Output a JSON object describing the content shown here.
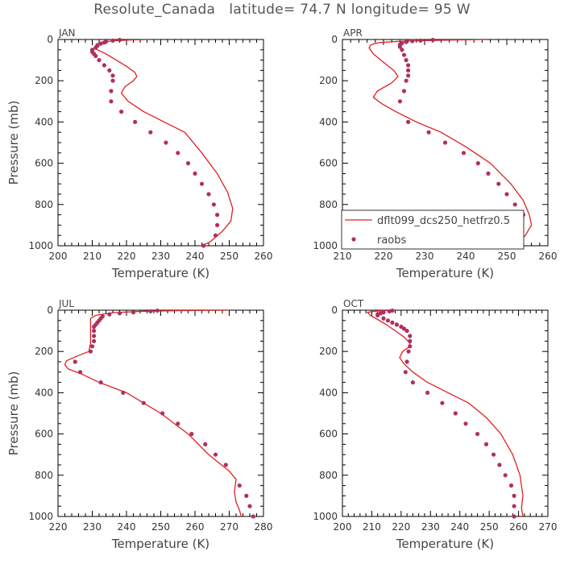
{
  "title": "Resolute_Canada   latitude= 74.7 N longitude= 95 W",
  "colors": {
    "model": "#e02020",
    "obs": "#b03060",
    "axis": "#000000",
    "text": "#444444"
  },
  "chart_data": [
    {
      "type": "line",
      "panel": "JAN",
      "xlabel": "Temperature (K)",
      "ylabel": "Pressure (mb)",
      "xlim": [
        200,
        260
      ],
      "ylim": [
        0,
        1000
      ],
      "y_inverted": true,
      "xticks": [
        200,
        210,
        220,
        230,
        240,
        250,
        260
      ],
      "yticks": [
        0,
        200,
        400,
        600,
        800,
        1000
      ],
      "series": [
        {
          "name": "dflt099_dcs250_hetfrz0.5",
          "kind": "line",
          "points": [
            [
              226.5,
              0
            ],
            [
              222,
              2
            ],
            [
              217,
              5
            ],
            [
              213,
              12
            ],
            [
              211.2,
              22
            ],
            [
              210.8,
              35
            ],
            [
              211.5,
              50
            ],
            [
              214,
              70
            ],
            [
              217,
              100
            ],
            [
              220,
              130
            ],
            [
              222.5,
              160
            ],
            [
              223,
              180
            ],
            [
              222,
              200
            ],
            [
              219.5,
              230
            ],
            [
              218.5,
              260
            ],
            [
              220.5,
              300
            ],
            [
              225,
              350
            ],
            [
              231,
              400
            ],
            [
              237,
              450
            ],
            [
              242,
              550
            ],
            [
              246.5,
              650
            ],
            [
              249.5,
              740
            ],
            [
              251,
              820
            ],
            [
              250.5,
              880
            ],
            [
              248,
              930
            ],
            [
              244.5,
              980
            ],
            [
              242,
              1000
            ]
          ]
        },
        {
          "name": "raobs",
          "kind": "scatter",
          "points": [
            [
              218,
              2
            ],
            [
              216,
              5
            ],
            [
              214,
              10
            ],
            [
              213.5,
              15
            ],
            [
              212.5,
              20
            ],
            [
              211.5,
              30
            ],
            [
              211,
              40
            ],
            [
              210,
              50
            ],
            [
              210,
              60
            ],
            [
              210.5,
              70
            ],
            [
              211,
              80
            ],
            [
              212,
              100
            ],
            [
              213.5,
              125
            ],
            [
              215,
              150
            ],
            [
              216,
              175
            ],
            [
              216,
              200
            ],
            [
              215.5,
              250
            ],
            [
              215.5,
              300
            ],
            [
              218.5,
              350
            ],
            [
              222.5,
              400
            ],
            [
              227,
              450
            ],
            [
              231.5,
              500
            ],
            [
              235,
              550
            ],
            [
              238,
              600
            ],
            [
              240,
              650
            ],
            [
              242,
              700
            ],
            [
              244,
              750
            ],
            [
              245.5,
              800
            ],
            [
              246.5,
              850
            ],
            [
              246.5,
              900
            ],
            [
              246,
              950
            ],
            [
              242.5,
              1000
            ]
          ]
        }
      ]
    },
    {
      "type": "line",
      "panel": "APR",
      "xlabel": "Temperature (K)",
      "ylabel": "",
      "xlim": [
        210,
        260
      ],
      "ylim": [
        0,
        1000
      ],
      "y_inverted": true,
      "xticks": [
        210,
        220,
        230,
        240,
        250,
        260
      ],
      "yticks": [
        0,
        200,
        400,
        600,
        800,
        1000
      ],
      "legend": {
        "placement": "bottom-right",
        "entries": [
          {
            "label": "dflt099_dcs250_hetfrz0.5",
            "kind": "line"
          },
          {
            "label": "raobs",
            "kind": "marker"
          }
        ]
      },
      "series": [
        {
          "name": "dflt099_dcs250_hetfrz0.5",
          "kind": "line",
          "points": [
            [
              245,
              0
            ],
            [
              235,
              3
            ],
            [
              225,
              8
            ],
            [
              219,
              15
            ],
            [
              217,
              25
            ],
            [
              216.5,
              40
            ],
            [
              217.5,
              70
            ],
            [
              220,
              110
            ],
            [
              222.5,
              150
            ],
            [
              223.5,
              180
            ],
            [
              222,
              210
            ],
            [
              218.5,
              250
            ],
            [
              217.5,
              280
            ],
            [
              219.5,
              310
            ],
            [
              223,
              350
            ],
            [
              228,
              400
            ],
            [
              234,
              450
            ],
            [
              240,
              520
            ],
            [
              246,
              600
            ],
            [
              251,
              700
            ],
            [
              254,
              780
            ],
            [
              255.5,
              850
            ],
            [
              256,
              900
            ],
            [
              254.5,
              950
            ],
            [
              252,
              990
            ],
            [
              251,
              1000
            ]
          ]
        },
        {
          "name": "raobs",
          "kind": "scatter",
          "points": [
            [
              232,
              2
            ],
            [
              229,
              5
            ],
            [
              227,
              8
            ],
            [
              225.5,
              12
            ],
            [
              224.5,
              18
            ],
            [
              224,
              25
            ],
            [
              224,
              35
            ],
            [
              224.5,
              50
            ],
            [
              225,
              75
            ],
            [
              225.5,
              100
            ],
            [
              226,
              125
            ],
            [
              226,
              150
            ],
            [
              226,
              175
            ],
            [
              225.5,
              200
            ],
            [
              225,
              250
            ],
            [
              224,
              300
            ],
            [
              226,
              400
            ],
            [
              231,
              450
            ],
            [
              235,
              500
            ],
            [
              239.5,
              550
            ],
            [
              243,
              600
            ],
            [
              245.5,
              650
            ],
            [
              248,
              700
            ],
            [
              250,
              750
            ],
            [
              252,
              800
            ],
            [
              254,
              850
            ],
            [
              253.5,
              900
            ],
            [
              253,
              950
            ],
            [
              251,
              1000
            ]
          ]
        }
      ]
    },
    {
      "type": "line",
      "panel": "JUL",
      "xlabel": "Temperature (K)",
      "ylabel": "Pressure (mb)",
      "xlim": [
        220,
        280
      ],
      "ylim": [
        0,
        1000
      ],
      "y_inverted": true,
      "xticks": [
        220,
        230,
        240,
        250,
        260,
        270,
        280
      ],
      "yticks": [
        0,
        200,
        400,
        600,
        800,
        1000
      ],
      "series": [
        {
          "name": "dflt099_dcs250_hetfrz0.5",
          "kind": "line",
          "points": [
            [
              270,
              0
            ],
            [
              256,
              2
            ],
            [
              245,
              5
            ],
            [
              236,
              12
            ],
            [
              231,
              25
            ],
            [
              229.5,
              40
            ],
            [
              229.5,
              80
            ],
            [
              229.5,
              120
            ],
            [
              229.5,
              160
            ],
            [
              229,
              200
            ],
            [
              226,
              220
            ],
            [
              222.5,
              245
            ],
            [
              222,
              265
            ],
            [
              223,
              285
            ],
            [
              227,
              310
            ],
            [
              232,
              350
            ],
            [
              240,
              400
            ],
            [
              250,
              500
            ],
            [
              258,
              600
            ],
            [
              264,
              700
            ],
            [
              270,
              780
            ],
            [
              272,
              820
            ],
            [
              271.5,
              880
            ],
            [
              272,
              930
            ],
            [
              273,
              970
            ],
            [
              273.5,
              1000
            ]
          ]
        },
        {
          "name": "raobs",
          "kind": "scatter",
          "points": [
            [
              249,
              2
            ],
            [
              247,
              5
            ],
            [
              242,
              10
            ],
            [
              238,
              15
            ],
            [
              235,
              20
            ],
            [
              233,
              30
            ],
            [
              232.5,
              40
            ],
            [
              232,
              50
            ],
            [
              231.5,
              60
            ],
            [
              231,
              70
            ],
            [
              230.5,
              80
            ],
            [
              230.5,
              100
            ],
            [
              230.5,
              125
            ],
            [
              230.5,
              150
            ],
            [
              230,
              175
            ],
            [
              229.5,
              200
            ],
            [
              225,
              250
            ],
            [
              226.5,
              300
            ],
            [
              232.5,
              350
            ],
            [
              239,
              400
            ],
            [
              245,
              450
            ],
            [
              250.5,
              500
            ],
            [
              255,
              550
            ],
            [
              259,
              600
            ],
            [
              263,
              650
            ],
            [
              266,
              700
            ],
            [
              269,
              750
            ],
            [
              273,
              850
            ],
            [
              275,
              900
            ],
            [
              276,
              950
            ],
            [
              277,
              1000
            ]
          ]
        }
      ]
    },
    {
      "type": "line",
      "panel": "OCT",
      "xlabel": "Temperature (K)",
      "ylabel": "",
      "xlim": [
        200,
        270
      ],
      "ylim": [
        0,
        1000
      ],
      "y_inverted": true,
      "xticks": [
        200,
        210,
        220,
        230,
        240,
        250,
        260,
        270
      ],
      "yticks": [
        0,
        200,
        400,
        600,
        800,
        1000
      ],
      "series": [
        {
          "name": "dflt099_dcs250_hetfrz0.5",
          "kind": "line",
          "points": [
            [
              218,
              0
            ],
            [
              212,
              3
            ],
            [
              208.5,
              10
            ],
            [
              209.5,
              25
            ],
            [
              212,
              45
            ],
            [
              215,
              70
            ],
            [
              218,
              100
            ],
            [
              221,
              130
            ],
            [
              223,
              160
            ],
            [
              222.5,
              180
            ],
            [
              220.5,
              200
            ],
            [
              219.5,
              230
            ],
            [
              221,
              260
            ],
            [
              224,
              300
            ],
            [
              229,
              350
            ],
            [
              236,
              400
            ],
            [
              243,
              450
            ],
            [
              249,
              520
            ],
            [
              254,
              600
            ],
            [
              258,
              700
            ],
            [
              260.5,
              800
            ],
            [
              261.5,
              900
            ],
            [
              261,
              960
            ],
            [
              261.5,
              1000
            ]
          ]
        },
        {
          "name": "raobs",
          "kind": "scatter",
          "points": [
            [
              217,
              2
            ],
            [
              216,
              5
            ],
            [
              214,
              10
            ],
            [
              213,
              15
            ],
            [
              212,
              20
            ],
            [
              212,
              25
            ],
            [
              214,
              40
            ],
            [
              215.5,
              50
            ],
            [
              217,
              60
            ],
            [
              218.5,
              70
            ],
            [
              220,
              80
            ],
            [
              221,
              90
            ],
            [
              222,
              100
            ],
            [
              223,
              125
            ],
            [
              223,
              150
            ],
            [
              223,
              175
            ],
            [
              222.5,
              200
            ],
            [
              222,
              250
            ],
            [
              221.5,
              300
            ],
            [
              224,
              350
            ],
            [
              229,
              400
            ],
            [
              234,
              450
            ],
            [
              238.5,
              500
            ],
            [
              242,
              550
            ],
            [
              246,
              600
            ],
            [
              249,
              650
            ],
            [
              251.5,
              700
            ],
            [
              253.5,
              750
            ],
            [
              255.5,
              800
            ],
            [
              257.5,
              850
            ],
            [
              258.5,
              900
            ],
            [
              258.5,
              950
            ],
            [
              258.5,
              1000
            ]
          ]
        }
      ]
    }
  ]
}
